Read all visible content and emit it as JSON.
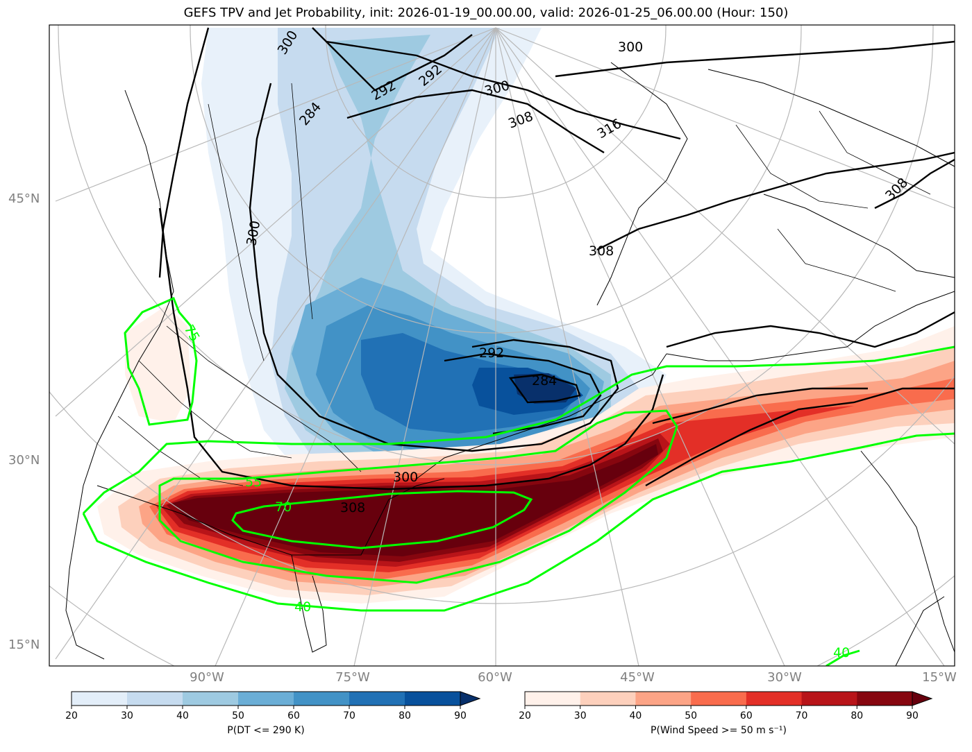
{
  "title": "GEFS TPV and Jet Probability, init: 2026-01-19_00.00.00, valid: 2026-01-25_06.00.00 (Hour: 150)",
  "lat_labels": [
    "45°N",
    "30°N",
    "15°N"
  ],
  "lon_labels": [
    "90°W",
    "75°W",
    "60°W",
    "45°W",
    "30°W",
    "15°W"
  ],
  "theta_labels": [
    "300",
    "292",
    "292",
    "300",
    "308",
    "316",
    "300",
    "308",
    "300",
    "308",
    "292",
    "284",
    "300",
    "284",
    "308"
  ],
  "prob_labels": [
    "55",
    "70",
    "40",
    "40",
    "75"
  ],
  "colorbars": [
    {
      "name": "tpv",
      "title": "P(DT <= 290 K)",
      "ticks": [
        "20",
        "30",
        "40",
        "50",
        "60",
        "70",
        "80",
        "90"
      ],
      "colors": [
        "#e3eef9",
        "#c6dbef",
        "#9ecae1",
        "#6baed6",
        "#4292c6",
        "#2171b5",
        "#08519c",
        "#08306b"
      ]
    },
    {
      "name": "jet",
      "title": "P(Wind Speed >= 50 m s⁻¹)",
      "ticks": [
        "20",
        "30",
        "40",
        "50",
        "60",
        "70",
        "80",
        "90"
      ],
      "colors": [
        "#fff1ea",
        "#fdd0bc",
        "#fca486",
        "#f96c4d",
        "#e32f27",
        "#b81419",
        "#86060f",
        "#67000d"
      ]
    }
  ],
  "contour_colors": {
    "theta": "#000000",
    "jet_prob": "#00ff00"
  }
}
